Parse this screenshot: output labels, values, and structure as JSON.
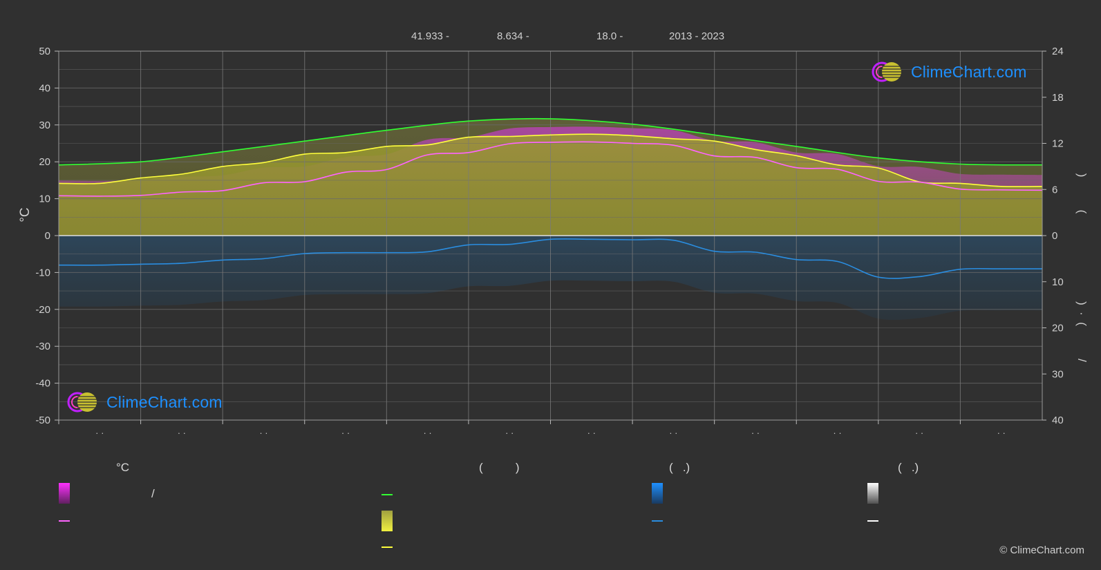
{
  "header": {
    "lat": "41.933 -",
    "lon": "8.634 -",
    "elev": "18.0 -",
    "years": "2013 - 2023"
  },
  "logo_text": "ClimeChart.com",
  "copyright": "© ClimeChart.com",
  "legend": {
    "temp_heading": "°C",
    "sun_heading": "(          )",
    "rain_heading": "(   .)",
    "snow_heading": "(   .)",
    "slash": "/"
  },
  "colors": {
    "background": "#303030",
    "daylight": "#32ff32",
    "sunshine": "#ffff3c",
    "tmax": "#ff64ff",
    "rain": "#2a8de0",
    "snow": "#ffffff",
    "grid": "#6a6a6a"
  },
  "chart_data": {
    "type": "line",
    "x_ticks": [
      "· ·",
      "· ·",
      "· ·",
      "· ·",
      "· ·",
      "· ·",
      "· ·",
      "· ·",
      "· ·",
      "· ·",
      "· ·",
      "· ·"
    ],
    "ylabel_left": "°C",
    "ylabel_right_top": ")          (",
    "ylabel_right_bottom": ")  ·  (          /",
    "ylim_left": [
      -50,
      50
    ],
    "yticks_left": [
      50,
      40,
      30,
      20,
      10,
      0,
      -10,
      -20,
      -30,
      -40,
      -50
    ],
    "yticks_right_top": [
      24,
      18,
      12,
      6,
      0
    ],
    "yticks_right_bottom": [
      10,
      20,
      30,
      40
    ],
    "grid": true,
    "x_month_fraction": [
      0,
      0.05,
      0.15,
      0.25,
      0.35,
      0.45,
      0.55,
      0.65,
      0.75,
      0.85,
      0.95,
      1
    ],
    "series": [
      {
        "key": "daylight",
        "unit": "hours",
        "x": [
          0,
          1,
          2,
          3,
          4,
          5,
          6,
          7,
          8,
          9,
          10,
          11,
          12
        ],
        "values": [
          9.2,
          9.6,
          10.9,
          12.3,
          13.7,
          14.9,
          15.2,
          14.5,
          13.1,
          11.6,
          10.1,
          9.3,
          9.2
        ]
      },
      {
        "key": "sunshine",
        "unit": "hours",
        "x": [
          0,
          0.5,
          1,
          1.5,
          2,
          2.5,
          3,
          3.5,
          4,
          4.5,
          5,
          5.5,
          6,
          6.5,
          7,
          7.5,
          8,
          8.5,
          9,
          9.5,
          10,
          10.5,
          11,
          11.5,
          12
        ],
        "values": [
          6.8,
          6.8,
          7.5,
          8.0,
          9.0,
          9.5,
          10.6,
          10.8,
          11.6,
          11.8,
          12.8,
          12.9,
          13.1,
          13.2,
          13.0,
          12.6,
          12.3,
          11.2,
          10.4,
          9.2,
          8.8,
          7.0,
          6.8,
          6.4,
          6.4
        ]
      },
      {
        "key": "tmax",
        "unit": "°C",
        "x": [
          0,
          0.5,
          1,
          1.5,
          2,
          2.5,
          3,
          3.5,
          4,
          4.5,
          5,
          5.5,
          6,
          6.5,
          7,
          7.5,
          8,
          8.5,
          9,
          9.5,
          10,
          10.5,
          11,
          11.5,
          12
        ],
        "values": [
          10.8,
          10.7,
          10.9,
          11.8,
          12.2,
          14.3,
          14.6,
          17.2,
          17.9,
          21.9,
          22.5,
          24.9,
          25.3,
          25.4,
          25.0,
          24.5,
          21.6,
          21.2,
          18.4,
          18.0,
          14.7,
          14.5,
          12.6,
          12.4,
          12.3
        ]
      },
      {
        "key": "rain",
        "unit": "mm",
        "x": [
          0,
          0.5,
          1,
          1.5,
          2,
          2.5,
          3,
          3.5,
          4,
          4.5,
          5,
          5.5,
          6,
          6.5,
          7,
          7.5,
          8,
          8.5,
          9,
          9.5,
          10,
          10.5,
          11,
          11.5,
          12
        ],
        "values": [
          6.4,
          6.4,
          6.2,
          6.0,
          5.3,
          5.0,
          3.9,
          3.7,
          3.7,
          3.5,
          2.0,
          1.9,
          0.8,
          0.8,
          0.9,
          1.0,
          3.4,
          3.6,
          5.2,
          5.6,
          9.0,
          8.9,
          7.3,
          7.2,
          7.2
        ]
      }
    ]
  }
}
